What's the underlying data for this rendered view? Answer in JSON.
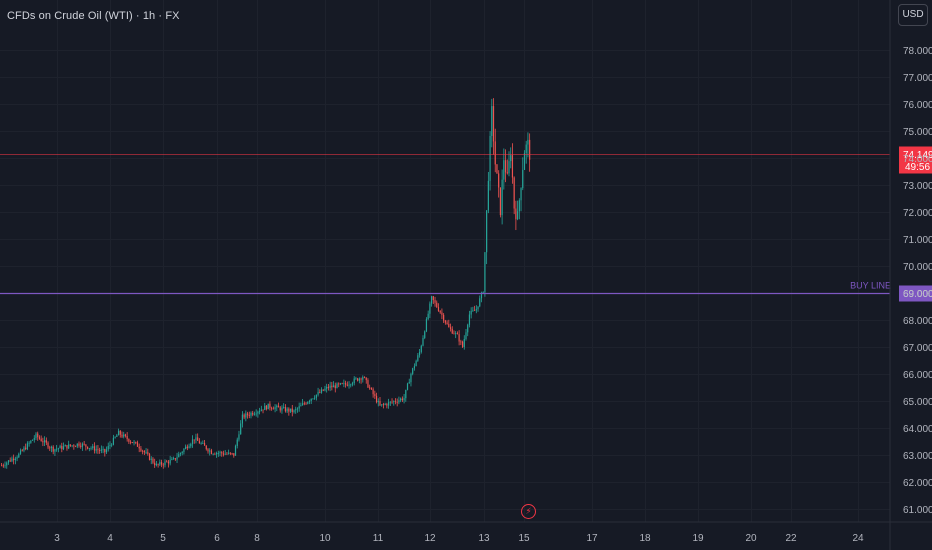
{
  "header": {
    "title": "CFDs on Crude Oil (WTI) · 1h · FX",
    "currency_button": "USD"
  },
  "colors": {
    "background": "#161a25",
    "up": "#26a69a",
    "down": "#ef5350",
    "buy_line": "#7e57c2",
    "price_line": "#f23645",
    "text": "#b2b5be"
  },
  "icons": {
    "event_marker": "lightning-bolt-icon"
  },
  "chart_data": {
    "type": "candlestick",
    "symbol": "CFDs on Crude Oil (WTI)",
    "interval": "1h",
    "ylim": [
      60.8,
      78.3
    ],
    "y_ticks": [
      61,
      62,
      63,
      64,
      65,
      66,
      67,
      68,
      69,
      70,
      71,
      72,
      73,
      74,
      75,
      76,
      77,
      78
    ],
    "y_tick_labels": [
      "61.000",
      "62.000",
      "63.000",
      "64.000",
      "65.000",
      "66.000",
      "67.000",
      "68.000",
      "69.000",
      "70.000",
      "71.000",
      "72.000",
      "73.000",
      "74.000",
      "75.000",
      "76.000",
      "77.000",
      "78.000"
    ],
    "x_tick_labels": [
      "3",
      "4",
      "5",
      "6",
      "8",
      "10",
      "11",
      "12",
      "13",
      "15",
      "17",
      "18",
      "19",
      "20",
      "22",
      "24"
    ],
    "grid": true,
    "horizontal_lines": [
      {
        "label": "BUY LINE",
        "price": 69.0,
        "price_label": "69.000"
      }
    ],
    "current_price": {
      "price": 74.149,
      "label": "74.149",
      "countdown": "49:56"
    },
    "anchors": [
      [
        0,
        62.6
      ],
      [
        10,
        63.0
      ],
      [
        20,
        63.7
      ],
      [
        30,
        63.2
      ],
      [
        45,
        63.4
      ],
      [
        60,
        63.1
      ],
      [
        68,
        63.8
      ],
      [
        80,
        63.3
      ],
      [
        90,
        62.6
      ],
      [
        100,
        62.8
      ],
      [
        112,
        63.6
      ],
      [
        122,
        63.1
      ],
      [
        135,
        63.0
      ],
      [
        140,
        64.4
      ],
      [
        155,
        64.8
      ],
      [
        170,
        64.6
      ],
      [
        180,
        65.1
      ],
      [
        190,
        65.5
      ],
      [
        200,
        65.6
      ],
      [
        210,
        65.9
      ],
      [
        220,
        64.8
      ],
      [
        234,
        65.1
      ],
      [
        238,
        66.0
      ],
      [
        243,
        66.8
      ],
      [
        250,
        68.8
      ],
      [
        255,
        68.3
      ],
      [
        260,
        67.7
      ],
      [
        265,
        67.4
      ],
      [
        268,
        67.0
      ],
      [
        272,
        68.2
      ],
      [
        276,
        68.4
      ],
      [
        280,
        69.1
      ],
      [
        281,
        70.5
      ],
      [
        283,
        73.4
      ],
      [
        285,
        75.7
      ],
      [
        287,
        73.8
      ],
      [
        290,
        72.1
      ],
      [
        292,
        74.0
      ],
      [
        294,
        73.2
      ],
      [
        296,
        74.3
      ],
      [
        298,
        72.2
      ],
      [
        300,
        71.8
      ],
      [
        302,
        73.1
      ],
      [
        304,
        74.3
      ],
      [
        306,
        74.5
      ],
      [
        307,
        74.15
      ]
    ]
  }
}
